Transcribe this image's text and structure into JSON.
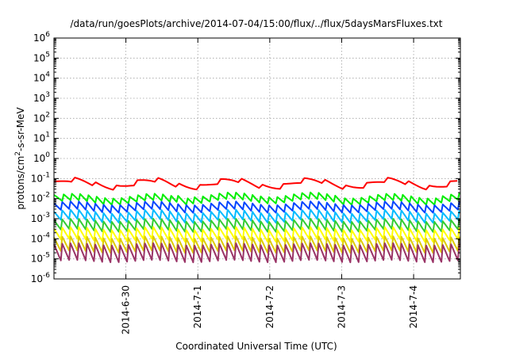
{
  "chart_data": {
    "type": "line",
    "title": "/data/run/goesPlots/archive/2014-07-04/15:00/flux/../flux/5daysMarsFluxes.txt",
    "xlabel": "Coordinated Universal Time (UTC)",
    "ylabel": {
      "base": "protons/cm",
      "sup": "2",
      "rest": "-s-sr-MeV"
    },
    "x_ticks": [
      "2014-6-30",
      "2014-7-1",
      "2014-7-2",
      "2014-7-3",
      "2014-7-4"
    ],
    "x_range_days": [
      -1.0,
      4.65
    ],
    "y_scale": "log",
    "y_ticks": [
      {
        "base": "10",
        "exp": "-6"
      },
      {
        "base": "10",
        "exp": "-5"
      },
      {
        "base": "10",
        "exp": "-4"
      },
      {
        "base": "10",
        "exp": "-3"
      },
      {
        "base": "10",
        "exp": "-2"
      },
      {
        "base": "10",
        "exp": "-1"
      },
      {
        "base": "10",
        "exp": "0"
      },
      {
        "base": "10",
        "exp": "1"
      },
      {
        "base": "10",
        "exp": "2"
      },
      {
        "base": "10",
        "exp": "3"
      },
      {
        "base": "10",
        "exp": "4"
      },
      {
        "base": "10",
        "exp": "5"
      },
      {
        "base": "10",
        "exp": "6"
      }
    ],
    "ylim_log10": [
      -6,
      6
    ],
    "grid": true,
    "series": [
      {
        "color": "#ff0000",
        "base_log": -1.25,
        "amp": 0.25,
        "period_days": 0.29,
        "wave": 0.2,
        "phase": 0.1
      },
      {
        "color": "#00ee00",
        "base_log": -2.0,
        "amp": 0.38,
        "period_days": 0.115,
        "wave": 0.12,
        "phase": 0.0
      },
      {
        "color": "#0044ff",
        "base_log": -2.45,
        "amp": 0.45,
        "period_days": 0.115,
        "wave": 0.1,
        "phase": 0.02
      },
      {
        "color": "#00bbff",
        "base_log": -2.9,
        "amp": 0.55,
        "period_days": 0.115,
        "wave": 0.1,
        "phase": 0.04
      },
      {
        "color": "#33cc33",
        "base_log": -3.35,
        "amp": 0.6,
        "period_days": 0.115,
        "wave": 0.08,
        "phase": 0.05
      },
      {
        "color": "#ffff00",
        "base_log": -3.8,
        "amp": 0.7,
        "period_days": 0.115,
        "wave": 0.08,
        "phase": 0.06
      },
      {
        "color": "#ddcc00",
        "base_log": -4.3,
        "amp": 0.85,
        "period_days": 0.115,
        "wave": 0.06,
        "phase": 0.07
      },
      {
        "color": "#993366",
        "base_log": -4.7,
        "amp": 1.0,
        "period_days": 0.115,
        "wave": 0.06,
        "phase": 0.08
      }
    ]
  }
}
